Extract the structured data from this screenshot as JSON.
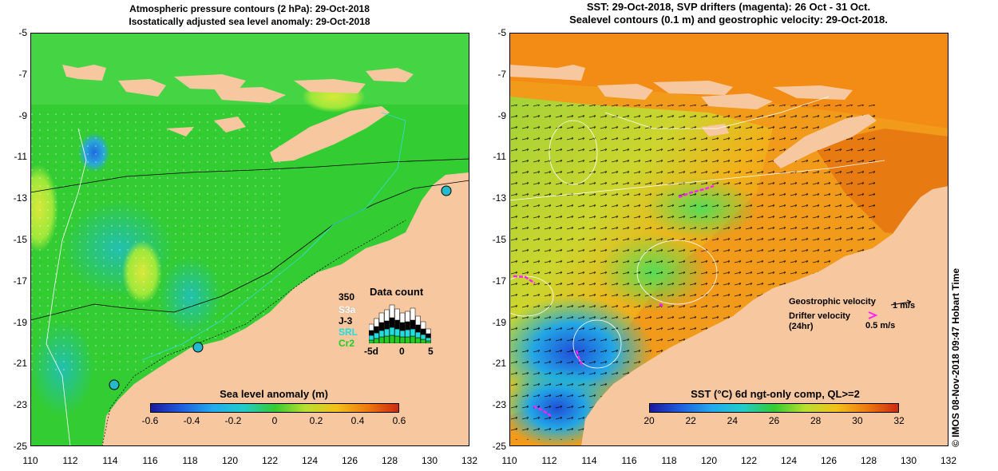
{
  "left_panel": {
    "title_line1": "Atmospheric pressure contours (2 hPa): 29-Oct-2018",
    "title_line2": "Isostatically adjusted sea level anomaly: 29-Oct-2018",
    "colorbar_title": "Sea level anomaly (m)",
    "colorbar_ticks": [
      "-0.6",
      "-0.4",
      "-0.2",
      "0",
      "0.2",
      "0.4",
      "0.6"
    ],
    "data_count": {
      "title": "Data count",
      "max_label": "350",
      "missions": [
        "S3a",
        "J-3",
        "SRL",
        "Cr2"
      ],
      "mission_colors": [
        "#ffffff",
        "#000000",
        "#22dddd",
        "#22cc22"
      ],
      "x_labels": [
        "-5d",
        "0",
        "5"
      ]
    }
  },
  "right_panel": {
    "title_line1": "SST: 29-Oct-2018, SVP drifters (magenta): 26 Oct - 31 Oct.",
    "title_line2": "Sealevel contours (0.1 m) and geostrophic velocity: 29-Oct-2018.",
    "colorbar_title": "SST (°C) 6d ngt-only comp, QL>=2",
    "colorbar_ticks": [
      "20",
      "22",
      "24",
      "26",
      "28",
      "30",
      "32"
    ],
    "legend": {
      "geostrophic": "Geostrophic velocity",
      "geostrophic_scale": "1 m/s",
      "drifter_line1": "Drifter velocity",
      "drifter_line2": "(24hr)",
      "drifter_scale": "0.5 m/s"
    }
  },
  "axes": {
    "y_ticks": [
      "-5",
      "-7",
      "-9",
      "-11",
      "-13",
      "-15",
      "-17",
      "-19",
      "-21",
      "-23",
      "-25"
    ],
    "x_ticks": [
      "110",
      "112",
      "114",
      "116",
      "118",
      "120",
      "122",
      "124",
      "126",
      "128",
      "130",
      "132"
    ]
  },
  "credit": "© IMOS 08-Nov-2018 09:47 Hobart Time",
  "colors": {
    "land": "#f7c8a0",
    "sla_ocean": "#33cc33",
    "sst_warm": "#f29a1a",
    "drifter": "#ff22ff"
  }
}
